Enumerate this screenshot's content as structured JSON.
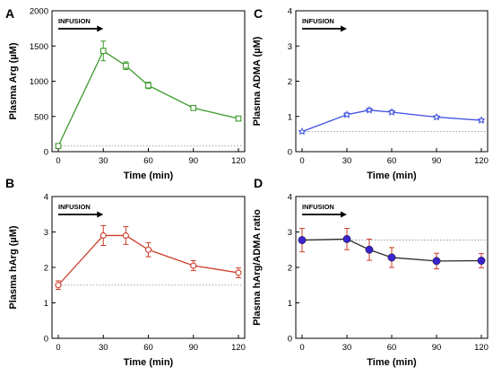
{
  "chart_data": [
    {
      "panel": "A",
      "type": "line",
      "xlabel": "Time (min)",
      "ylabel": "Plasma Arg (µM)",
      "annotation": "INFUSION",
      "color": "#3c9a2c",
      "marker": "square",
      "xlim": [
        0,
        120
      ],
      "ylim": [
        0,
        2000
      ],
      "xticks": [
        "0",
        "30",
        "60",
        "90",
        "120"
      ],
      "yticks": [
        "0",
        "500",
        "1000",
        "1500",
        "2000"
      ],
      "x": [
        0,
        30,
        45,
        60,
        90,
        120
      ],
      "y": [
        80,
        1430,
        1220,
        940,
        620,
        470
      ],
      "err": [
        20,
        140,
        55,
        45,
        30,
        20
      ],
      "baseline": 80
    },
    {
      "panel": "B",
      "type": "line",
      "xlabel": "Time (min)",
      "ylabel": "Plasma hArg (µM)",
      "annotation": "INFUSION",
      "color": "#cc3d2a",
      "marker": "circle",
      "xlim": [
        0,
        120
      ],
      "ylim": [
        0,
        4
      ],
      "xticks": [
        "0",
        "30",
        "60",
        "90",
        "120"
      ],
      "yticks": [
        "0",
        "1",
        "2",
        "3",
        "4"
      ],
      "x": [
        0,
        30,
        45,
        60,
        90,
        120
      ],
      "y": [
        1.5,
        2.9,
        2.9,
        2.5,
        2.05,
        1.85
      ],
      "err": [
        0.12,
        0.28,
        0.25,
        0.2,
        0.14,
        0.14
      ],
      "baseline": 1.5
    },
    {
      "panel": "C",
      "type": "line",
      "xlabel": "Time (min)",
      "ylabel": "Plasma ADMA (µM)",
      "annotation": "INFUSION",
      "color": "#3f4fe0",
      "marker": "star",
      "xlim": [
        0,
        120
      ],
      "ylim": [
        0,
        4
      ],
      "xticks": [
        "0",
        "30",
        "60",
        "90",
        "120"
      ],
      "yticks": [
        "0",
        "1",
        "2",
        "3",
        "4"
      ],
      "x": [
        0,
        30,
        45,
        60,
        90,
        120
      ],
      "y": [
        0.57,
        1.05,
        1.18,
        1.12,
        0.98,
        0.89
      ],
      "err": [
        0.03,
        0.05,
        0.05,
        0.05,
        0.04,
        0.04
      ],
      "baseline": 0.57
    },
    {
      "panel": "D",
      "type": "line",
      "xlabel": "Time (min)",
      "ylabel": "Plasma hArg/ADMA ratio",
      "annotation": "INFUSION",
      "color": "#2a2a2a",
      "error_color": "#cc3d2a",
      "marker_color": "#3a22cc",
      "marker": "filled-circle",
      "xlim": [
        0,
        120
      ],
      "ylim": [
        0,
        4
      ],
      "xticks": [
        "0",
        "30",
        "60",
        "90",
        "120"
      ],
      "yticks": [
        "0",
        "1",
        "2",
        "3",
        "4"
      ],
      "x": [
        0,
        30,
        45,
        60,
        90,
        120
      ],
      "y": [
        2.77,
        2.8,
        2.5,
        2.28,
        2.18,
        2.19
      ],
      "err": [
        0.33,
        0.3,
        0.3,
        0.28,
        0.22,
        0.2
      ],
      "baseline": 2.77
    }
  ]
}
